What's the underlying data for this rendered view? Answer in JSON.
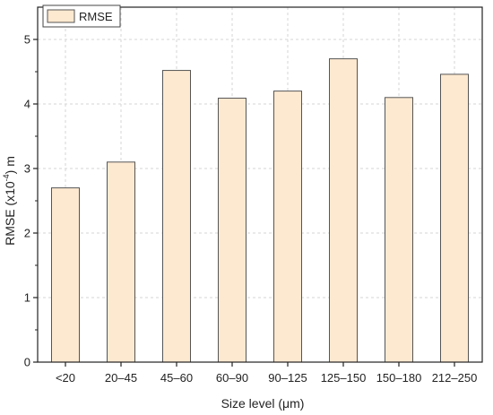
{
  "chart_data": {
    "type": "bar",
    "categories": [
      "<20",
      "20–45",
      "45–60",
      "60–90",
      "90–125",
      "125–150",
      "150–180",
      "212–250"
    ],
    "series": [
      {
        "name": "RMSE",
        "values": [
          2.7,
          3.1,
          4.52,
          4.09,
          4.2,
          4.7,
          4.1,
          4.46
        ]
      }
    ],
    "xlabel": "Size level (μm)",
    "ylabel_parts": {
      "base": "RMSE (x10",
      "exp": "-4",
      "tail": ") m"
    },
    "ylim": [
      0,
      5.5
    ],
    "yticks": [
      0,
      1,
      2,
      3,
      4,
      5
    ],
    "grid": true,
    "legend_position": "top-left",
    "bar_fill": "#fde9d0",
    "bar_stroke": "#555555"
  }
}
